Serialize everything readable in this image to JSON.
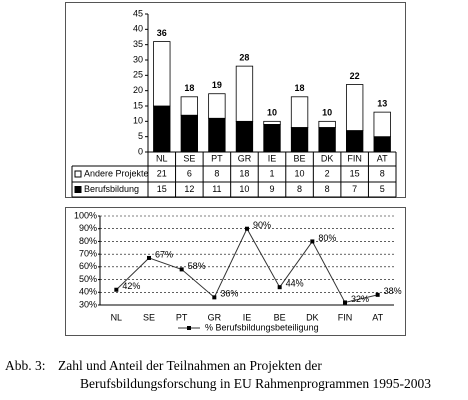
{
  "chart_data": [
    {
      "type": "stacked-bar",
      "categories": [
        "NL",
        "SE",
        "PT",
        "GR",
        "IE",
        "BE",
        "DK",
        "FIN",
        "AT"
      ],
      "series": [
        {
          "name": "Andere Projekte",
          "color": "#ffffff",
          "values": [
            21,
            6,
            8,
            18,
            1,
            10,
            2,
            15,
            8
          ]
        },
        {
          "name": "Berufsbildung",
          "color": "#000000",
          "values": [
            15,
            12,
            11,
            10,
            9,
            8,
            8,
            7,
            5
          ]
        }
      ],
      "totals": [
        36,
        18,
        19,
        28,
        10,
        18,
        10,
        22,
        13
      ],
      "ylim": [
        0,
        45
      ],
      "yticks": [
        0,
        5,
        10,
        15,
        20,
        25,
        30,
        35,
        40,
        45
      ],
      "grid": false
    },
    {
      "type": "line",
      "categories": [
        "NL",
        "SE",
        "PT",
        "GR",
        "IE",
        "BE",
        "DK",
        "FIN",
        "AT"
      ],
      "series": [
        {
          "name": "% Berufsbildungsbeteiligung",
          "color": "#333333",
          "values": [
            42,
            67,
            58,
            36,
            90,
            44,
            80,
            32,
            38
          ],
          "value_labels": [
            "42%",
            "67%",
            "58%",
            "36%",
            "90%",
            "44%",
            "80%",
            "32%",
            "38%"
          ]
        }
      ],
      "ylim": [
        30,
        100
      ],
      "yticks": [
        {
          "value": 30,
          "label": "30%"
        },
        {
          "value": 40,
          "label": "40%"
        },
        {
          "value": 50,
          "label": "50%"
        },
        {
          "value": 60,
          "label": "60%"
        },
        {
          "value": 70,
          "label": "70%"
        },
        {
          "value": 80,
          "label": "80%"
        },
        {
          "value": 90,
          "label": "90%"
        },
        {
          "value": 100,
          "label": "100%"
        }
      ],
      "grid": true
    }
  ],
  "caption": {
    "label": "Abb. 3:",
    "lines": [
      "Zahl und Anteil der Teilnahmen an Projekten der",
      "Berufsbildungsforschung in EU Rahmenprogrammen 1995-2003"
    ]
  }
}
